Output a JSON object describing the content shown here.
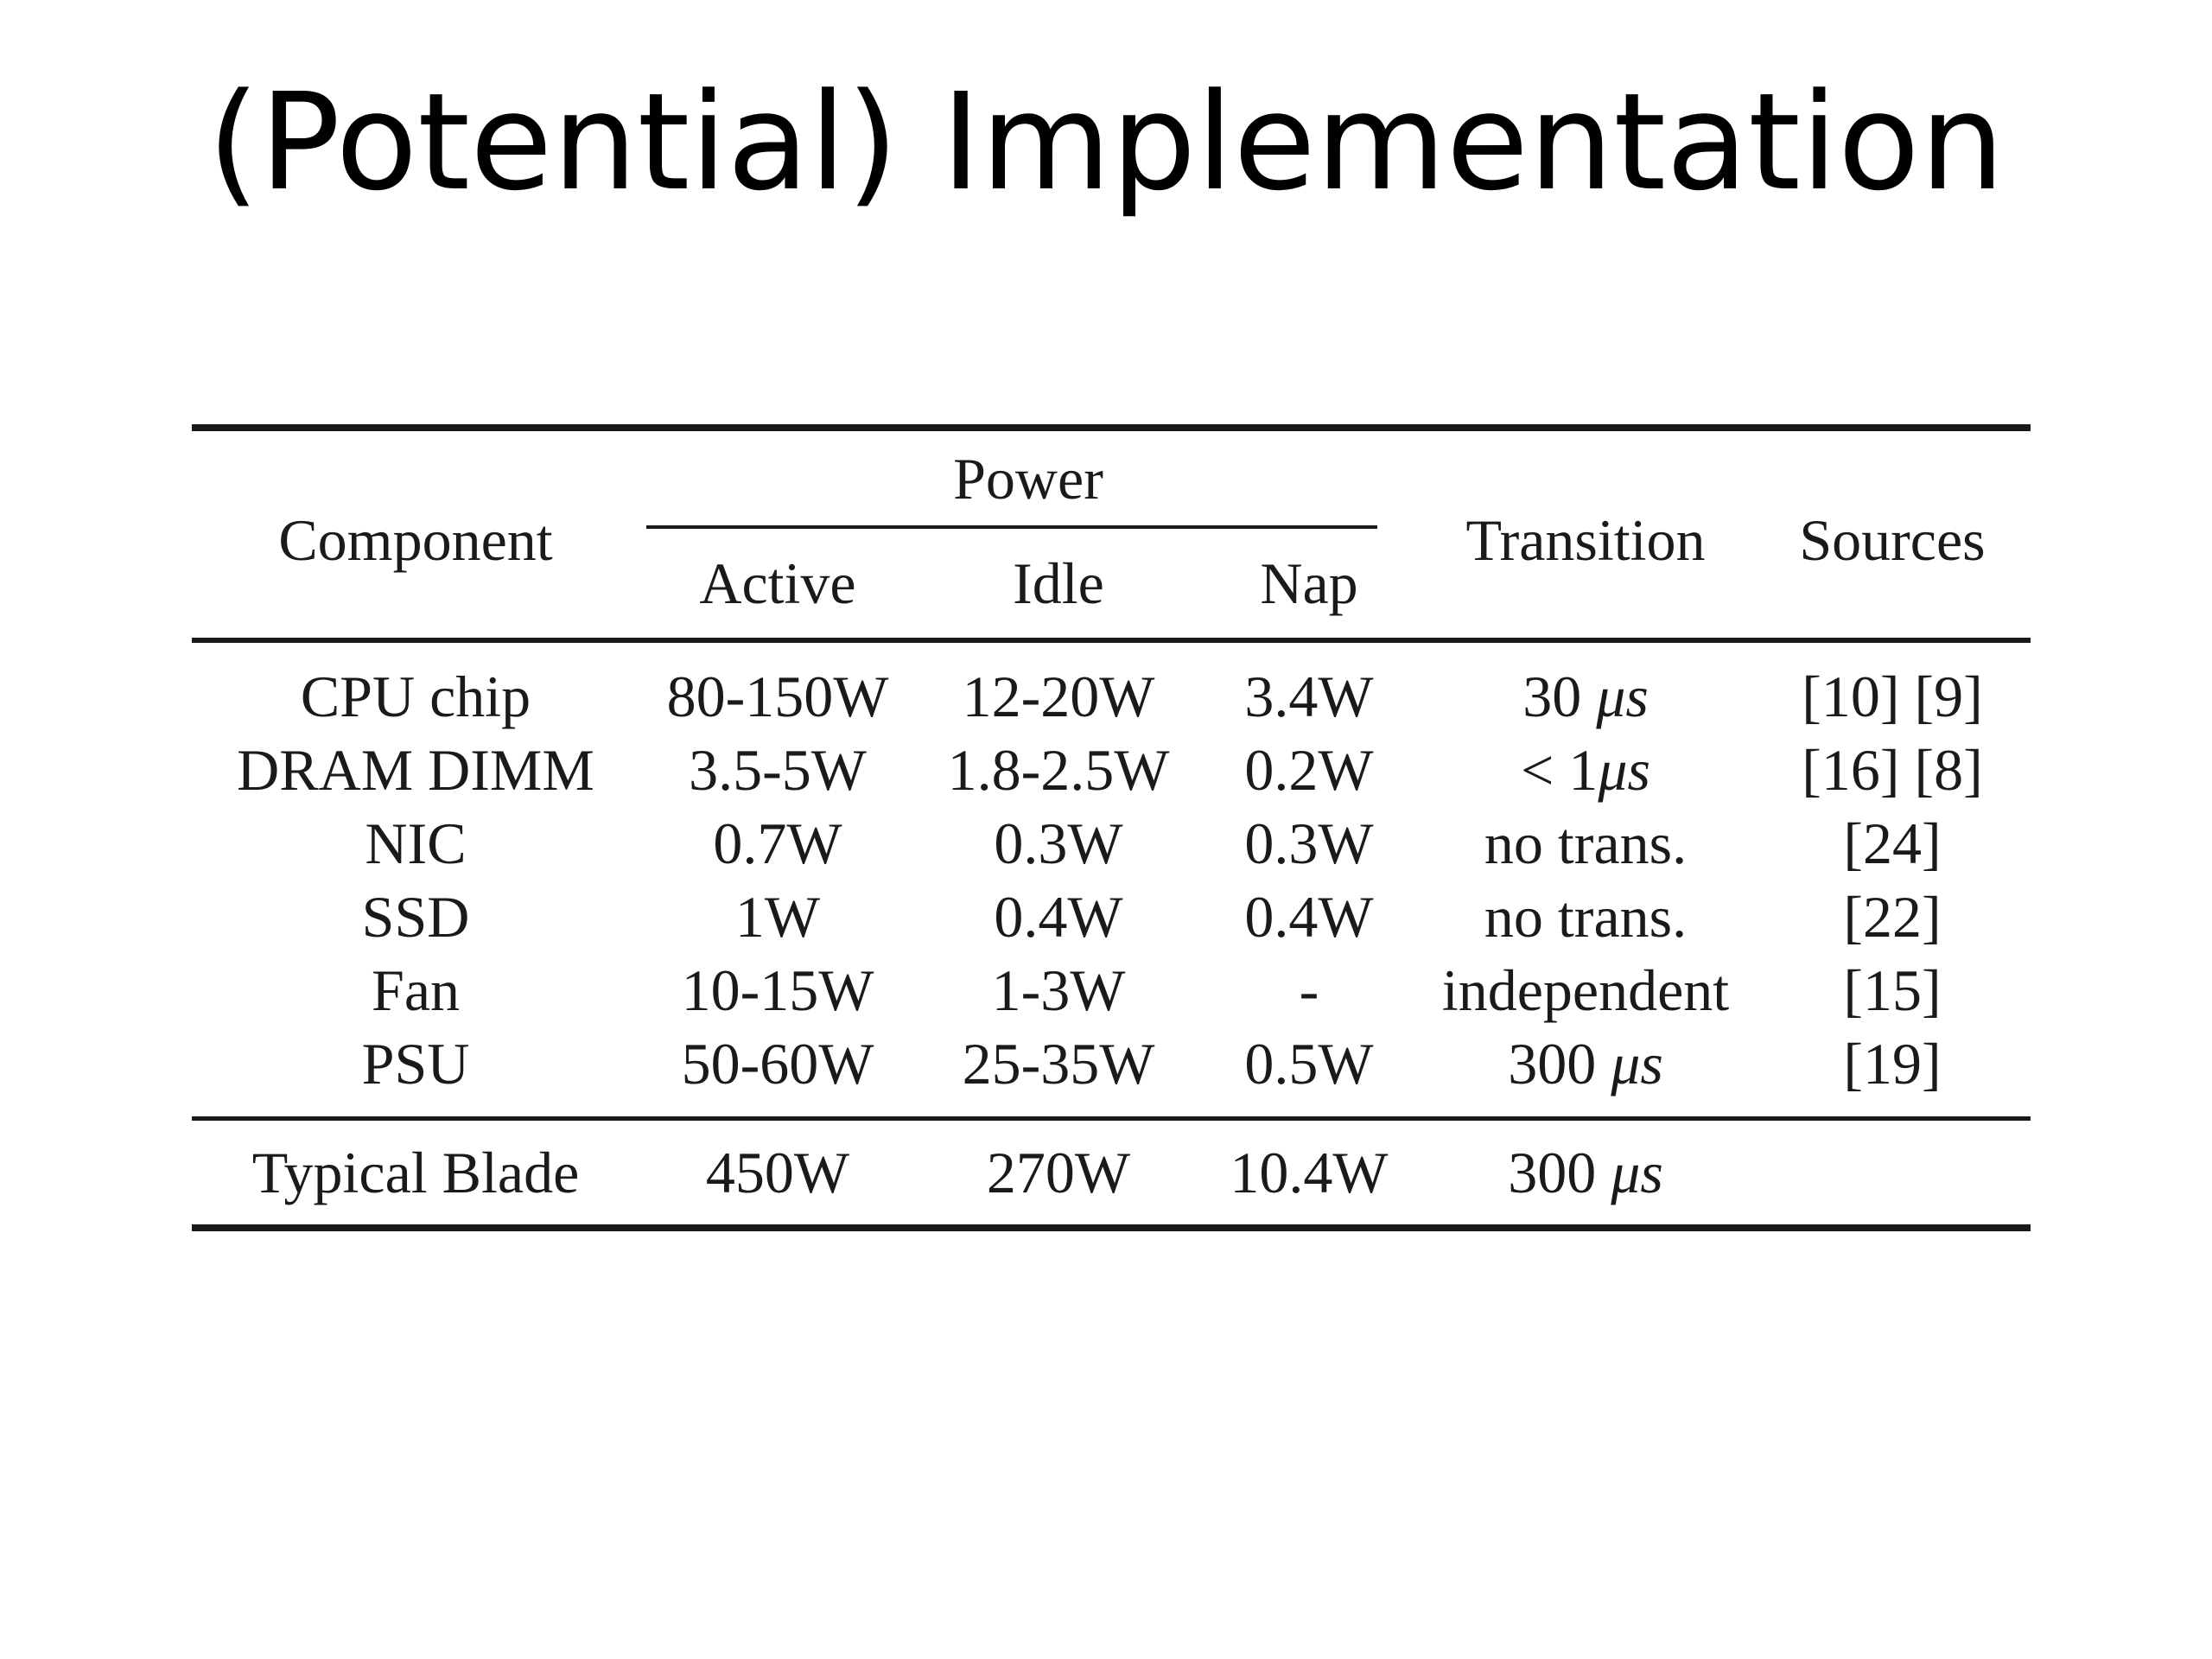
{
  "slide": {
    "title": "(Potential) Implementation"
  },
  "table": {
    "headers": {
      "component": "Component",
      "power_group": "Power",
      "active": "Active",
      "idle": "Idle",
      "nap": "Nap",
      "transition": "Transition",
      "sources": "Sources"
    },
    "rows": [
      {
        "component": "CPU chip",
        "active": "80-150W",
        "idle": "12-20W",
        "nap": "3.4W",
        "transition_num": "30 ",
        "transition_unit": "μs",
        "sources": "[10] [9]"
      },
      {
        "component": "DRAM DIMM",
        "active": "3.5-5W",
        "idle": "1.8-2.5W",
        "nap": "0.2W",
        "transition_num": "< 1",
        "transition_unit": "μs",
        "sources": "[16] [8]"
      },
      {
        "component": "NIC",
        "active": "0.7W",
        "idle": "0.3W",
        "nap": "0.3W",
        "transition_num": "no trans.",
        "transition_unit": "",
        "sources": "[24]"
      },
      {
        "component": "SSD",
        "active": "1W",
        "idle": "0.4W",
        "nap": "0.4W",
        "transition_num": "no trans.",
        "transition_unit": "",
        "sources": "[22]"
      },
      {
        "component": "Fan",
        "active": "10-15W",
        "idle": "1-3W",
        "nap": "-",
        "transition_num": "independent",
        "transition_unit": "",
        "sources": "[15]"
      },
      {
        "component": "PSU",
        "active": "50-60W",
        "idle": "25-35W",
        "nap": "0.5W",
        "transition_num": "300 ",
        "transition_unit": "μs",
        "sources": "[19]"
      }
    ],
    "total": {
      "component": "Typical Blade",
      "active": "450W",
      "idle": "270W",
      "nap": "10.4W",
      "transition_num": "300 ",
      "transition_unit": "μs",
      "sources": ""
    }
  }
}
